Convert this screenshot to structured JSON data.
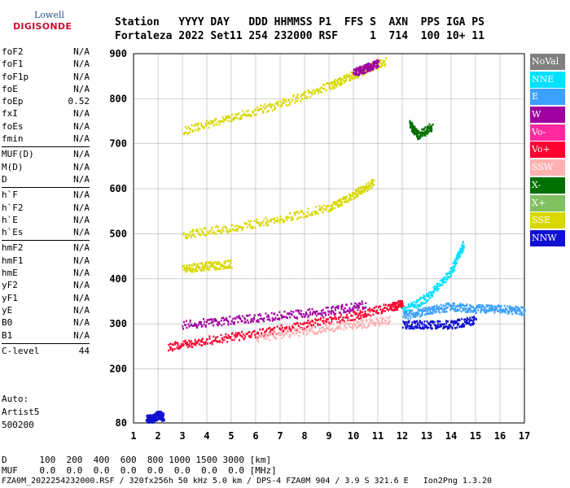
{
  "logo": {
    "brand": "Lowell",
    "name": "DIGISONDE"
  },
  "header": {
    "line1": "Station   YYYY DAY   DDD HHMMSS P1  FFS S  AXN  PPS IGA PS",
    "line2": "Fortaleza 2022 Set11 254 232000 RSF     1  714  100 10+ 11"
  },
  "params": [
    {
      "label": "foF2",
      "value": "N/A"
    },
    {
      "label": "foF1",
      "value": "N/A"
    },
    {
      "label": "foF1p",
      "value": "N/A"
    },
    {
      "label": "foE",
      "value": "N/A"
    },
    {
      "label": "foEp",
      "value": "0.52"
    },
    {
      "label": "fxI",
      "value": "N/A"
    },
    {
      "label": "foEs",
      "value": "N/A"
    },
    {
      "label": "fmin",
      "value": "N/A"
    },
    {
      "label": "MUF(D)",
      "value": "N/A"
    },
    {
      "label": "M(D)",
      "value": "N/A"
    },
    {
      "label": "D",
      "value": "N/A"
    },
    {
      "label": "h`F",
      "value": "N/A"
    },
    {
      "label": "h`F2",
      "value": "N/A"
    },
    {
      "label": "h`E",
      "value": "N/A"
    },
    {
      "label": "h`Es",
      "value": "N/A"
    },
    {
      "label": "hmF2",
      "value": "N/A"
    },
    {
      "label": "hmF1",
      "value": "N/A"
    },
    {
      "label": "hmE",
      "value": "N/A"
    },
    {
      "label": "yF2",
      "value": "N/A"
    },
    {
      "label": "yF1",
      "value": "N/A"
    },
    {
      "label": "yE",
      "value": "N/A"
    },
    {
      "label": "B0",
      "value": "N/A"
    },
    {
      "label": "B1",
      "value": "N/A"
    },
    {
      "label": "C-level",
      "value": "44"
    }
  ],
  "auto": {
    "line1": "Auto:",
    "line2": "Artist5",
    "line3": "500200"
  },
  "legend": [
    {
      "label": "NoVal",
      "color": "#808080"
    },
    {
      "label": "NNE",
      "color": "#00e0ff"
    },
    {
      "label": "E",
      "color": "#3ca0ff"
    },
    {
      "label": "W",
      "color": "#a000a0"
    },
    {
      "label": "Vo-",
      "color": "#ff2aa0"
    },
    {
      "label": "Vo+",
      "color": "#ff0030"
    },
    {
      "label": "SSW",
      "color": "#ffb0b0"
    },
    {
      "label": "X-",
      "color": "#007000"
    },
    {
      "label": "X+",
      "color": "#80c060"
    },
    {
      "label": "SSE",
      "color": "#d8d800"
    },
    {
      "label": "NNW",
      "color": "#1010d0"
    }
  ],
  "bottom": {
    "d_line": "D      100  200  400  600  800 1000 1500 3000 [km]",
    "muf_line": "MUF    0.0  0.0  0.0  0.0  0.0  0.0  0.0  0.0 [MHz]",
    "footer": "FZA0M_2022254232000.RSF / 320fx256h 50 kHz 5.0 km / DPS-4 FZA0M 904 / 3.9 S 321.6 E   Ion2Png 1.3.20"
  },
  "chart_data": {
    "type": "scatter",
    "xlim": [
      1,
      17
    ],
    "ylim": [
      80,
      900
    ],
    "xticks": [
      "1",
      "2",
      "3",
      "4",
      "5",
      "6",
      "7",
      "8",
      "9",
      "10",
      "11",
      "12",
      "13",
      "14",
      "15",
      "16",
      "17"
    ],
    "yticks": [
      "80",
      "200",
      "300",
      "400",
      "500",
      "600",
      "700",
      "800",
      "900"
    ],
    "grid": true,
    "traces": [
      {
        "color": "SSE",
        "x": [
          3.0,
          5.0,
          7.0,
          9.0,
          10.0,
          11.3
        ],
        "y": [
          730,
          760,
          790,
          830,
          855,
          885
        ]
      },
      {
        "color": "W",
        "x": [
          10.0,
          10.5,
          11.0
        ],
        "y": [
          860,
          870,
          880
        ]
      },
      {
        "color": "SSE",
        "x": [
          3.0,
          5.0,
          7.0,
          9.0,
          10.0,
          10.8
        ],
        "y": [
          500,
          515,
          535,
          560,
          590,
          615
        ]
      },
      {
        "color": "SSE",
        "x": [
          3.0,
          4.0,
          5.0
        ],
        "y": [
          425,
          430,
          435
        ]
      },
      {
        "color": "Vo+",
        "x": [
          2.4,
          4.0,
          6.0,
          8.0,
          10.0,
          11.5,
          12.0
        ],
        "y": [
          250,
          265,
          280,
          300,
          320,
          340,
          345
        ]
      },
      {
        "color": "W",
        "x": [
          3.0,
          5.0,
          7.0,
          9.0,
          10.5
        ],
        "y": [
          300,
          310,
          320,
          330,
          345
        ]
      },
      {
        "color": "SSW",
        "x": [
          6.0,
          8.0,
          10.0,
          11.5
        ],
        "y": [
          270,
          285,
          300,
          310
        ]
      },
      {
        "color": "NNE",
        "x": [
          12.0,
          13.0,
          14.0,
          14.5
        ],
        "y": [
          330,
          360,
          420,
          480
        ]
      },
      {
        "color": "E",
        "x": [
          12.0,
          13.0,
          14.0,
          15.0,
          16.0,
          17.0
        ],
        "y": [
          320,
          330,
          340,
          335,
          335,
          330
        ]
      },
      {
        "color": "NNW",
        "x": [
          12.0,
          13.0,
          14.0,
          15.0
        ],
        "y": [
          300,
          300,
          300,
          310
        ]
      },
      {
        "color": "X-",
        "x": [
          12.3,
          12.6,
          13.2
        ],
        "y": [
          745,
          720,
          740
        ]
      },
      {
        "color": "NNW",
        "x": [
          1.5,
          1.8,
          2.0,
          2.2
        ],
        "y": [
          90,
          92,
          100,
          95
        ]
      }
    ]
  }
}
